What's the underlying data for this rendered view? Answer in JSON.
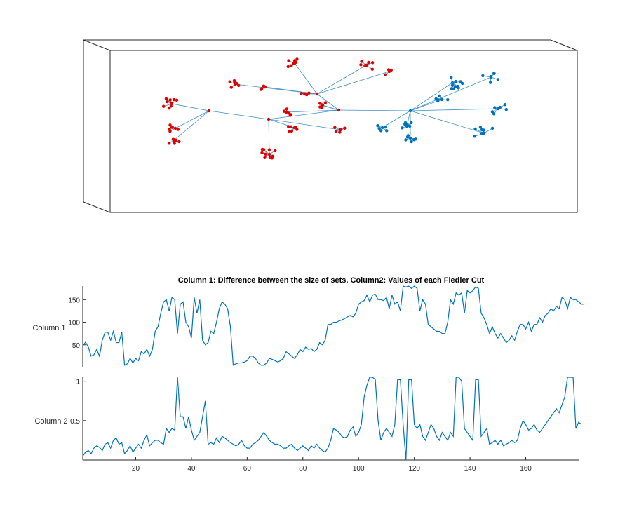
{
  "colors": {
    "background": "#ffffff",
    "red_cluster": "#e00000",
    "blue_cluster": "#0072bd",
    "edge": "#3d8fc6",
    "axis": "#262626",
    "series": "#0072bd"
  },
  "graph": {
    "type": "3d-graph-plot"
  },
  "chart_data": [
    {
      "type": "line",
      "title": "Column 1: Difference between the size of sets. Column2: Values of each Fiedler Cut",
      "ylabel": "Column 1",
      "xlim": [
        1,
        179
      ],
      "ylim": [
        0,
        180
      ],
      "yticks": [
        50,
        100,
        150
      ],
      "xticks": [],
      "series": [
        {
          "values": [
            48,
            56,
            45,
            25,
            28,
            40,
            25,
            60,
            78,
            78,
            60,
            80,
            55,
            55,
            78,
            5,
            8,
            20,
            10,
            20,
            15,
            35,
            30,
            40,
            25,
            40,
            80,
            90,
            120,
            145,
            150,
            125,
            155,
            150,
            75,
            140,
            145,
            100,
            90,
            65,
            155,
            120,
            150,
            60,
            50,
            55,
            80,
            75,
            100,
            130,
            145,
            140,
            130,
            90,
            5,
            8,
            10,
            10,
            12,
            15,
            25,
            25,
            20,
            10,
            5,
            5,
            10,
            20,
            18,
            15,
            12,
            15,
            20,
            35,
            30,
            25,
            20,
            28,
            40,
            35,
            45,
            40,
            42,
            35,
            40,
            55,
            50,
            60,
            95,
            95,
            100,
            100,
            103,
            105,
            108,
            112,
            115,
            112,
            120,
            140,
            145,
            148,
            160,
            145,
            160,
            162,
            150,
            150,
            148,
            155,
            130,
            160,
            140,
            145,
            125,
            180,
            178,
            180,
            175,
            180,
            175,
            125,
            150,
            140,
            95,
            90,
            85,
            80,
            80,
            75,
            75,
            100,
            150,
            140,
            165,
            160,
            165,
            120,
            170,
            165,
            170,
            178,
            175,
            120,
            110,
            95,
            75,
            90,
            75,
            65,
            75,
            65,
            55,
            60,
            70,
            60,
            80,
            95,
            95,
            85,
            100,
            80,
            95,
            95,
            110,
            100,
            115,
            120,
            130,
            125,
            135,
            130,
            155,
            150,
            130,
            155,
            150,
            150,
            145,
            140,
            140
          ]
        }
      ]
    },
    {
      "type": "line",
      "xlabel": "",
      "ylabel": "Column 2",
      "xlim": [
        1,
        179
      ],
      "ylim": [
        0,
        1.05
      ],
      "yticks": [
        0.5,
        1
      ],
      "xticks": [
        20,
        40,
        60,
        80,
        100,
        120,
        140,
        160
      ],
      "series": [
        {
          "values": [
            0.05,
            0.1,
            0.12,
            0.08,
            0.15,
            0.18,
            0.16,
            0.12,
            0.2,
            0.22,
            0.15,
            0.25,
            0.28,
            0.2,
            0.22,
            0.08,
            0.12,
            0.18,
            0.1,
            0.15,
            0.2,
            0.15,
            0.25,
            0.32,
            0.18,
            0.22,
            0.25,
            0.25,
            0.22,
            0.2,
            0.4,
            0.35,
            0.4,
            0.38,
            1.05,
            0.55,
            0.55,
            0.4,
            0.55,
            0.38,
            0.25,
            0.3,
            0.35,
            0.55,
            0.75,
            0.2,
            0.22,
            0.2,
            0.28,
            0.22,
            0.3,
            0.28,
            0.25,
            0.22,
            0.2,
            0.18,
            0.2,
            0.25,
            0.18,
            0.15,
            0.15,
            0.2,
            0.22,
            0.25,
            0.3,
            0.35,
            0.3,
            0.25,
            0.22,
            0.2,
            0.2,
            0.18,
            0.15,
            0.15,
            0.18,
            0.2,
            0.15,
            0.12,
            0.15,
            0.18,
            0.15,
            0.12,
            0.18,
            0.15,
            0.2,
            0.15,
            0.12,
            0.1,
            0.15,
            0.25,
            0.4,
            0.38,
            0.35,
            0.3,
            0.28,
            0.3,
            0.38,
            0.42,
            0.3,
            0.35,
            0.45,
            0.8,
            0.95,
            1.05,
            1.05,
            1.02,
            0.5,
            0.25,
            0.35,
            0.4,
            0.35,
            0.3,
            0.45,
            1.02,
            1.02,
            0.45,
            0.0,
            1.02,
            1.02,
            0.45,
            0.4,
            0.45,
            0.3,
            0.25,
            0.35,
            0.45,
            0.4,
            0.3,
            0.25,
            0.35,
            0.3,
            0.25,
            0.35,
            0.3,
            1.05,
            1.05,
            1.0,
            0.4,
            0.35,
            0.3,
            0.25,
            1.02,
            1.02,
            0.3,
            0.35,
            0.4,
            0.2,
            0.22,
            0.25,
            0.2,
            0.25,
            0.18,
            0.2,
            0.22,
            0.25,
            0.22,
            0.25,
            0.4,
            0.5,
            0.45,
            0.38,
            0.4,
            0.45,
            0.38,
            0.35,
            0.4,
            0.45,
            0.5,
            0.55,
            0.6,
            0.65,
            0.6,
            0.7,
            0.8,
            1.05,
            1.05,
            1.05,
            0.4,
            0.48,
            0.45
          ]
        }
      ]
    }
  ]
}
